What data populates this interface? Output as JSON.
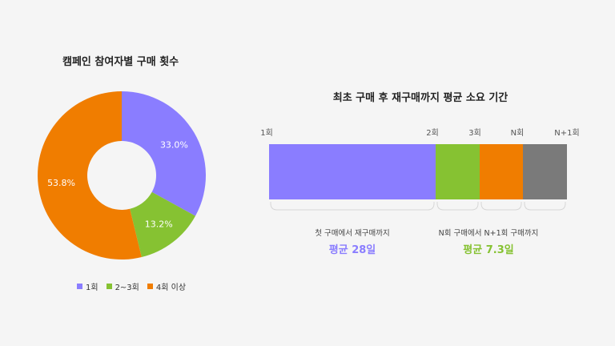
{
  "donut_title": "캠페인 참여자별 구매 횟수",
  "bar_title": "최초 구매 후 재구매까지 평균 소요 기간",
  "colors": {
    "purple": "#8a7dff",
    "green": "#86c232",
    "orange": "#f07d00",
    "gray": "#7a7a7a"
  },
  "chart_data": [
    {
      "type": "pie",
      "title": "캠페인 참여자별 구매 횟수",
      "categories": [
        "1회",
        "2~3회",
        "4회 이상"
      ],
      "values": [
        33.0,
        13.2,
        53.8
      ],
      "labels": [
        "33.0%",
        "13.2%",
        "53.8%"
      ],
      "legend_position": "bottom",
      "donut": true
    },
    {
      "type": "bar",
      "title": "최초 구매 후 재구매까지 평균 소요 기간",
      "orientation": "horizontal-stacked",
      "ticks": [
        "1회",
        "2회",
        "3회",
        "N회",
        "N+1회"
      ],
      "segments": [
        {
          "from": "1회",
          "to": "2회",
          "color": "#8a7dff"
        },
        {
          "from": "2회",
          "to": "3회",
          "color": "#86c232"
        },
        {
          "from": "3회",
          "to": "N회",
          "color": "#f07d00"
        },
        {
          "from": "N회",
          "to": "N+1회",
          "color": "#7a7a7a"
        }
      ],
      "values_days": [
        28,
        7.3,
        7.3,
        7.3
      ]
    }
  ],
  "summaries": [
    {
      "caption": "첫 구매에서 재구매까지",
      "value": "평균 28일",
      "color": "#8a7dff"
    },
    {
      "caption": "N회 구매에서 N+1회 구매까지",
      "value": "평균 7.3일",
      "color": "#86c232"
    }
  ]
}
